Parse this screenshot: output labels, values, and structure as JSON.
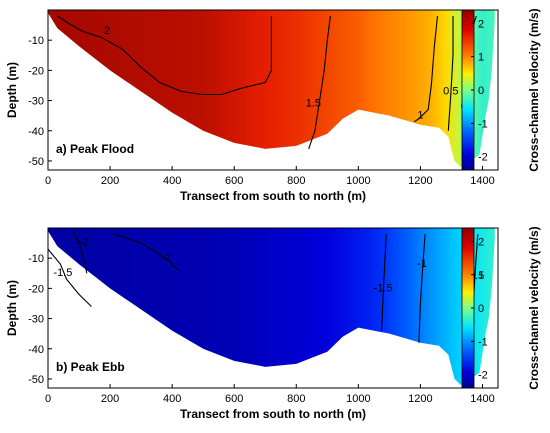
{
  "chart_data": [
    {
      "type": "heatmap",
      "panel_label": "a) Peak Flood",
      "xlabel": "Transect from south to north (m)",
      "ylabel": "Depth (m)",
      "xlim": [
        0,
        1450
      ],
      "ylim": [
        -53,
        0
      ],
      "xticks": [
        0,
        200,
        400,
        600,
        800,
        1000,
        1200,
        1400
      ],
      "yticks": [
        -10,
        -20,
        -30,
        -40,
        -50
      ],
      "colorbar": {
        "label": "Cross-channel velocity (m/s)",
        "range": [
          -2.4,
          2.4
        ],
        "ticks": [
          2,
          1,
          0,
          -1,
          -2
        ]
      },
      "bathymetry": [
        [
          0,
          -1
        ],
        [
          30,
          -6
        ],
        [
          100,
          -12
        ],
        [
          200,
          -20
        ],
        [
          300,
          -27
        ],
        [
          400,
          -34
        ],
        [
          500,
          -40
        ],
        [
          600,
          -44
        ],
        [
          700,
          -46
        ],
        [
          800,
          -45
        ],
        [
          900,
          -41
        ],
        [
          950,
          -36
        ],
        [
          1000,
          -33
        ],
        [
          1100,
          -35
        ],
        [
          1200,
          -38
        ],
        [
          1260,
          -39
        ],
        [
          1290,
          -42
        ],
        [
          1310,
          -50
        ],
        [
          1330,
          -52
        ],
        [
          1390,
          -48
        ],
        [
          1410,
          -35
        ],
        [
          1420,
          -30
        ],
        [
          1430,
          -20
        ],
        [
          1440,
          -3
        ]
      ],
      "velocity_profile": [
        [
          0,
          2.3
        ],
        [
          500,
          2.2
        ],
        [
          800,
          1.9
        ],
        [
          1000,
          1.6
        ],
        [
          1150,
          1.2
        ],
        [
          1250,
          0.9
        ],
        [
          1300,
          0.5
        ],
        [
          1350,
          0.0
        ],
        [
          1400,
          -0.3
        ],
        [
          1440,
          -0.2
        ]
      ],
      "contours": [
        {
          "level": "2",
          "label_pos": [
            190,
            -7
          ],
          "points": [
            [
              30,
              -2
            ],
            [
              60,
              -4
            ],
            [
              110,
              -7
            ],
            [
              170,
              -9
            ],
            [
              240,
              -13
            ],
            [
              300,
              -19
            ],
            [
              360,
              -24
            ],
            [
              430,
              -27
            ],
            [
              500,
              -28
            ],
            [
              560,
              -28
            ],
            [
              620,
              -26
            ],
            [
              700,
              -24
            ],
            [
              720,
              -20
            ],
            [
              720,
              -2
            ]
          ]
        },
        {
          "level": "1.5",
          "label_pos": [
            855,
            -31
          ],
          "points": [
            [
              910,
              -2
            ],
            [
              900,
              -10
            ],
            [
              890,
              -20
            ],
            [
              875,
              -30
            ],
            [
              860,
              -40
            ],
            [
              840,
              -46
            ]
          ]
        },
        {
          "level": "1",
          "label_pos": [
            1200,
            -35
          ],
          "points": [
            [
              1255,
              -2
            ],
            [
              1245,
              -12
            ],
            [
              1235,
              -25
            ],
            [
              1225,
              -33
            ],
            [
              1195,
              -36
            ],
            [
              1180,
              -37
            ]
          ]
        },
        {
          "level": "0.5",
          "label_pos": [
            1298,
            -27
          ],
          "points": [
            [
              1305,
              -2
            ],
            [
              1305,
              -15
            ],
            [
              1298,
              -28
            ],
            [
              1290,
              -40
            ]
          ]
        },
        {
          "level": "0",
          "label_pos": [
            1340,
            -32
          ],
          "points": [
            [
              1380,
              -2
            ],
            [
              1355,
              -10
            ],
            [
              1340,
              -22
            ],
            [
              1335,
              -35
            ],
            [
              1340,
              -48
            ]
          ]
        }
      ]
    },
    {
      "type": "heatmap",
      "panel_label": "b) Peak Ebb",
      "xlabel": "Transect from south to north (m)",
      "ylabel": "Depth (m)",
      "xlim": [
        0,
        1450
      ],
      "ylim": [
        -53,
        0
      ],
      "xticks": [
        0,
        200,
        400,
        600,
        800,
        1000,
        1200,
        1400
      ],
      "yticks": [
        -10,
        -20,
        -30,
        -40,
        -50
      ],
      "colorbar": {
        "label": "Cross-channel velocity (m/s)",
        "range": [
          -2.4,
          2.4
        ],
        "ticks": [
          2,
          1,
          0,
          -1,
          -2
        ]
      },
      "bathymetry": [
        [
          0,
          -1
        ],
        [
          30,
          -6
        ],
        [
          100,
          -12
        ],
        [
          200,
          -20
        ],
        [
          300,
          -27
        ],
        [
          400,
          -34
        ],
        [
          500,
          -40
        ],
        [
          600,
          -44
        ],
        [
          700,
          -46
        ],
        [
          800,
          -45
        ],
        [
          900,
          -41
        ],
        [
          950,
          -36
        ],
        [
          1000,
          -33
        ],
        [
          1100,
          -35
        ],
        [
          1200,
          -38
        ],
        [
          1260,
          -39
        ],
        [
          1290,
          -42
        ],
        [
          1310,
          -50
        ],
        [
          1330,
          -52
        ],
        [
          1390,
          -48
        ],
        [
          1410,
          -35
        ],
        [
          1420,
          -30
        ],
        [
          1430,
          -20
        ],
        [
          1440,
          -3
        ]
      ],
      "velocity_profile": [
        [
          0,
          -2.3
        ],
        [
          600,
          -2.2
        ],
        [
          900,
          -2.0
        ],
        [
          1050,
          -1.7
        ],
        [
          1150,
          -1.3
        ],
        [
          1250,
          -0.9
        ],
        [
          1330,
          -0.6
        ],
        [
          1400,
          -0.4
        ],
        [
          1440,
          -0.3
        ]
      ],
      "contours": [
        {
          "level": "-2",
          "label_pos": [
            115,
            -5
          ],
          "points": [
            [
              80,
              -1
            ],
            [
              100,
              -5
            ],
            [
              115,
              -10
            ],
            [
              125,
              -15
            ]
          ]
        },
        {
          "level": "-2",
          "label_pos": [
            380,
            -10
          ],
          "points": [
            [
              210,
              -2
            ],
            [
              300,
              -5
            ],
            [
              380,
              -10
            ],
            [
              420,
              -14
            ]
          ]
        },
        {
          "level": "-1.5",
          "label_pos": [
            48,
            -15
          ],
          "points": [
            [
              0,
              -7
            ],
            [
              40,
              -12
            ],
            [
              60,
              -17
            ],
            [
              100,
              -22
            ],
            [
              140,
              -26
            ]
          ]
        },
        {
          "level": "-1.5",
          "label_pos": [
            1080,
            -20
          ],
          "points": [
            [
              1090,
              -2
            ],
            [
              1085,
              -12
            ],
            [
              1080,
              -22
            ],
            [
              1075,
              -34
            ]
          ]
        },
        {
          "level": "-1",
          "label_pos": [
            1205,
            -12
          ],
          "points": [
            [
              1215,
              -2
            ],
            [
              1208,
              -12
            ],
            [
              1200,
              -25
            ],
            [
              1195,
              -38
            ]
          ]
        },
        {
          "level": "-0.5",
          "label_pos": [
            1375,
            -16
          ],
          "points": [
            [
              1385,
              -2
            ],
            [
              1378,
              -12
            ],
            [
              1370,
              -25
            ],
            [
              1360,
              -40
            ]
          ]
        }
      ]
    }
  ]
}
